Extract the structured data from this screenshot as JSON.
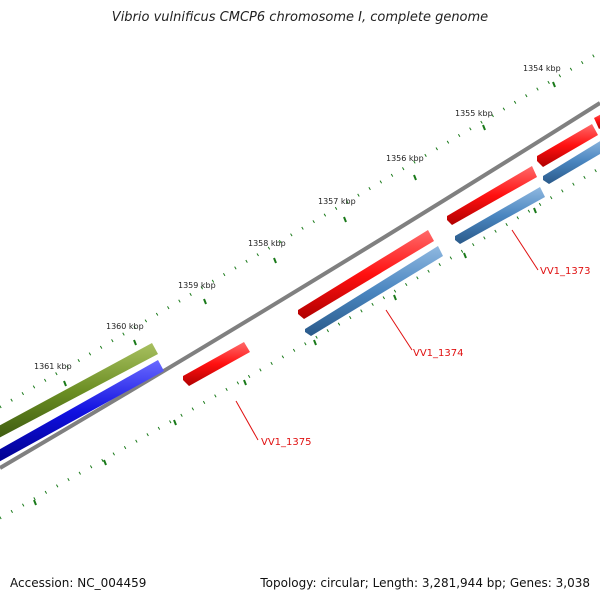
{
  "title": "Vibrio vulnificus CMCP6 chromosome I, complete genome",
  "footer": {
    "accession": "Accession: NC_004459",
    "summary": "Topology: circular; Length: 3,281,944 bp; Genes: 3,038"
  },
  "ticks": [
    "1354 kbp",
    "1355 kbp",
    "1356 kbp",
    "1357 kbp",
    "1358 kbp",
    "1359 kbp",
    "1360 kbp",
    "1361 kbp"
  ],
  "genes": [
    {
      "label": "VV1_1373",
      "color": "#ee1111",
      "track": "outer"
    },
    {
      "label": "VV1_1374",
      "color": "#ee1111",
      "track": "outer"
    },
    {
      "label": "VV1_1375",
      "color": "#ee1111",
      "track": "outer"
    }
  ],
  "colors": {
    "backbone": "#808080",
    "cds_forward": "#ee1111",
    "cds_reverse_steel": "#4a86c0",
    "cds_reverse_blue": "#1010e0",
    "cds_green": "#6b8e23",
    "tick_dots": "#1a7a1a",
    "label_line": "#e01010"
  }
}
